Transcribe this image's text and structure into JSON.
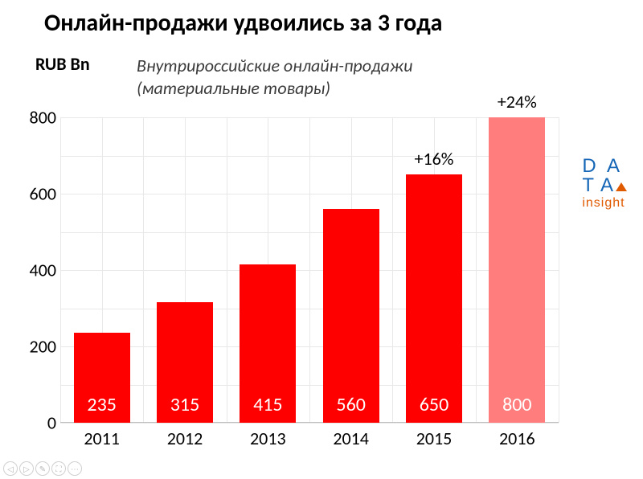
{
  "title": "Онлайн-продажи удвоились за 3 года",
  "title_fontsize": 30,
  "yaxis_title": "RUB Bn",
  "yaxis_title_fontsize": 22,
  "subtitle": "Внутрироссийские онлайн-продажи\n(материальные товары)",
  "subtitle_fontsize": 22,
  "chart": {
    "type": "bar",
    "categories": [
      "2011",
      "2012",
      "2013",
      "2014",
      "2015",
      "2016"
    ],
    "values": [
      235,
      315,
      415,
      560,
      650,
      800
    ],
    "value_labels": [
      "235",
      "315",
      "415",
      "560",
      "650",
      "800"
    ],
    "growth_labels": [
      "",
      "",
      "",
      "",
      "+16%",
      "+24%"
    ],
    "bar_colors": [
      "#ff0000",
      "#ff0000",
      "#ff0000",
      "#ff0000",
      "#ff0000",
      "#ff7d7d"
    ],
    "bar_width_ratio": 0.68,
    "value_label_color": "#ffffff",
    "value_label_fontsize": 24,
    "growth_label_fontsize": 22,
    "ylim": [
      0,
      800
    ],
    "ytick_step": 200,
    "ytick_fontsize": 22,
    "xtick_fontsize": 22,
    "grid_color": "#e8e8e8",
    "axis_color": "#bfbfbf",
    "background_color": "#ffffff",
    "grid_minor_x": 12,
    "grid_minor_y": 8
  },
  "logo": {
    "line1": "DATA",
    "line2": "insight",
    "color1": "#1566b6",
    "color2": "#e05a00",
    "fontsize1": 24,
    "fontsize2": 16
  },
  "controls": {
    "items": [
      "◁",
      "▷",
      "✎",
      "⛶",
      "⋯"
    ]
  }
}
